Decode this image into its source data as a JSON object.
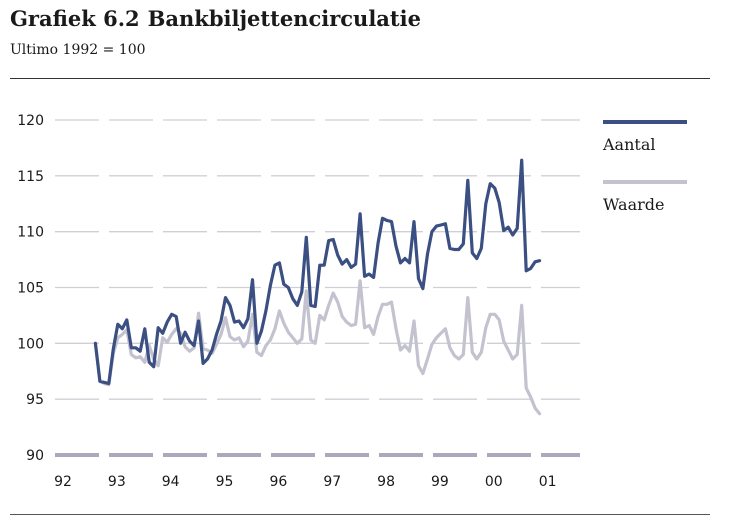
{
  "figure": {
    "title_number": "Grafiek 6.2",
    "title_text": "Bankbiljettencirculatie",
    "subtitle": "Ultimo 1992 = 100"
  },
  "colors": {
    "aantal": "#3b4f82",
    "waarde": "#c3c2cf",
    "grid": "#cfcfd8",
    "baseline": "#a9a8bd"
  },
  "chart_data": {
    "type": "line",
    "title": "Grafiek 6.2 Bankbiljettencirculatie",
    "subtitle": "Ultimo 1992 = 100",
    "xlabel": "",
    "ylabel": "",
    "x_tick_labels": [
      "92",
      "93",
      "94",
      "95",
      "96",
      "97",
      "98",
      "99",
      "00",
      "01"
    ],
    "y_ticks": [
      90,
      95,
      100,
      105,
      110,
      115,
      120
    ],
    "ylim": [
      90,
      120
    ],
    "xlim": [
      1992,
      2001.75
    ],
    "grid": "horizontal dashed",
    "legend_position": "right",
    "x": [
      1992.75,
      1992.833,
      1992.917,
      1993.0,
      1993.083,
      1993.167,
      1993.25,
      1993.333,
      1993.417,
      1993.5,
      1993.583,
      1993.667,
      1993.75,
      1993.833,
      1993.917,
      1994.0,
      1994.083,
      1994.167,
      1994.25,
      1994.333,
      1994.417,
      1994.5,
      1994.583,
      1994.667,
      1994.75,
      1994.833,
      1994.917,
      1995.0,
      1995.083,
      1995.167,
      1995.25,
      1995.333,
      1995.417,
      1995.5,
      1995.583,
      1995.667,
      1995.75,
      1995.833,
      1995.917,
      1996.0,
      1996.083,
      1996.167,
      1996.25,
      1996.333,
      1996.417,
      1996.5,
      1996.583,
      1996.667,
      1996.75,
      1996.833,
      1996.917,
      1997.0,
      1997.083,
      1997.167,
      1997.25,
      1997.333,
      1997.417,
      1997.5,
      1997.583,
      1997.667,
      1997.75,
      1997.833,
      1997.917,
      1998.0,
      1998.083,
      1998.167,
      1998.25,
      1998.333,
      1998.417,
      1998.5,
      1998.583,
      1998.667,
      1998.75,
      1998.833,
      1998.917,
      1999.0,
      1999.083,
      1999.167,
      1999.25,
      1999.333,
      1999.417,
      1999.5,
      1999.583,
      1999.667,
      1999.75,
      1999.833,
      1999.917,
      2000.0,
      2000.083,
      2000.167,
      2000.25,
      2000.333,
      2000.417,
      2000.5,
      2000.583,
      2000.667,
      2000.75,
      2000.833,
      2000.917,
      2001.0
    ],
    "series": [
      {
        "name": "Aantal",
        "values": [
          100.0,
          96.6,
          96.5,
          96.4,
          99.5,
          101.7,
          101.3,
          102.1,
          99.6,
          99.6,
          99.3,
          101.3,
          98.3,
          97.9,
          101.4,
          100.9,
          101.9,
          102.6,
          102.4,
          100.0,
          101.0,
          100.2,
          99.8,
          102.0,
          98.2,
          98.6,
          99.4,
          100.8,
          102.0,
          104.1,
          103.4,
          101.9,
          102.0,
          101.4,
          102.2,
          105.7,
          100.0,
          101.1,
          102.9,
          105.2,
          107.0,
          107.2,
          105.3,
          105.0,
          104.0,
          103.4,
          104.6,
          109.5,
          103.4,
          103.3,
          107.0,
          107.0,
          109.2,
          109.3,
          107.9,
          107.1,
          107.5,
          106.8,
          107.1,
          111.6,
          106.0,
          106.2,
          105.9,
          109.0,
          111.2,
          111.0,
          110.9,
          108.7,
          107.2,
          107.6,
          107.2,
          110.9,
          105.8,
          104.9,
          108.0,
          110.0,
          110.5,
          110.6,
          110.7,
          108.5,
          108.4,
          108.4,
          108.9,
          114.6,
          108.1,
          107.6,
          108.5,
          112.5,
          114.3,
          113.9,
          112.6,
          110.1,
          110.4,
          109.7,
          110.3,
          116.4,
          106.5,
          106.7,
          107.3,
          107.4
        ]
      },
      {
        "name": "Waarde",
        "values": [
          100.0,
          96.6,
          96.4,
          96.3,
          99.1,
          100.5,
          100.8,
          101.2,
          99.0,
          98.7,
          98.8,
          98.3,
          99.8,
          98.6,
          98.0,
          100.5,
          100.1,
          100.8,
          101.3,
          100.9,
          99.7,
          99.3,
          99.6,
          102.7,
          99.5,
          99.4,
          99.1,
          99.9,
          100.8,
          102.3,
          100.6,
          100.3,
          100.5,
          99.7,
          100.2,
          102.6,
          99.2,
          98.9,
          99.8,
          100.3,
          101.3,
          102.9,
          101.8,
          101.0,
          100.5,
          100.0,
          100.4,
          104.7,
          100.3,
          100.0,
          102.5,
          102.1,
          103.4,
          104.5,
          103.7,
          102.4,
          101.9,
          101.6,
          101.7,
          105.6,
          101.4,
          101.6,
          100.8,
          102.4,
          103.5,
          103.5,
          103.7,
          101.3,
          99.4,
          99.8,
          99.3,
          102.0,
          98.0,
          97.3,
          98.6,
          99.9,
          100.5,
          100.9,
          101.3,
          99.6,
          98.9,
          98.6,
          99.0,
          104.1,
          99.2,
          98.6,
          99.2,
          101.4,
          102.6,
          102.6,
          102.1,
          100.2,
          99.4,
          98.6,
          99.0,
          103.4,
          96.0,
          95.2,
          94.2,
          93.7
        ]
      }
    ]
  }
}
